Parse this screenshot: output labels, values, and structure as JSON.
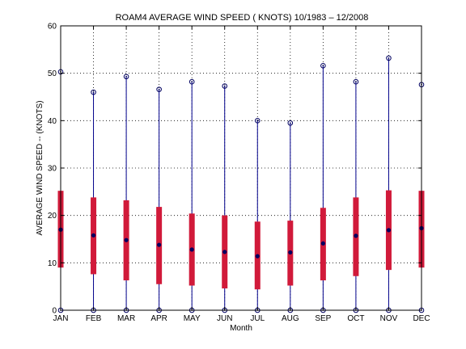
{
  "chart_data": {
    "type": "box",
    "title": "ROAM4  AVERAGE WIND SPEED ( KNOTS) 10/1983 – 12/2008",
    "xlabel": "Month",
    "ylabel": "AVERAGE WIND SPEED -- (KNOTS)",
    "ylim": [
      0,
      60
    ],
    "yticks": [
      0,
      10,
      20,
      30,
      40,
      50,
      60
    ],
    "grid": true,
    "categories": [
      "JAN",
      "FEB",
      "MAR",
      "APR",
      "MAY",
      "JUN",
      "JUL",
      "AUG",
      "SEP",
      "OCT",
      "NOV",
      "DEC"
    ],
    "series": [
      {
        "stat": "min",
        "values": [
          0,
          0,
          0,
          0,
          0,
          0,
          0,
          0,
          0,
          0,
          0,
          0
        ]
      },
      {
        "stat": "q1",
        "values": [
          9,
          7.6,
          6.3,
          5.5,
          5.2,
          4.6,
          4.4,
          5.2,
          6.3,
          7.2,
          8.5,
          9
        ]
      },
      {
        "stat": "median",
        "values": [
          17,
          15.8,
          14.8,
          13.8,
          12.8,
          12.3,
          11.4,
          12.2,
          14.1,
          15.7,
          16.9,
          17.3
        ]
      },
      {
        "stat": "q3",
        "values": [
          25.2,
          23.8,
          23.2,
          21.8,
          20.4,
          20,
          18.7,
          18.9,
          21.6,
          23.8,
          25.3,
          25.2
        ]
      },
      {
        "stat": "max",
        "values": [
          50.3,
          46,
          49.3,
          46.6,
          48.2,
          47.3,
          40,
          39.5,
          51.6,
          48.2,
          53.2,
          47.6
        ]
      }
    ],
    "colors": {
      "whisker": "#00008b",
      "box": "#d11a3a",
      "marker": "#000060",
      "grid": "#000000"
    }
  }
}
